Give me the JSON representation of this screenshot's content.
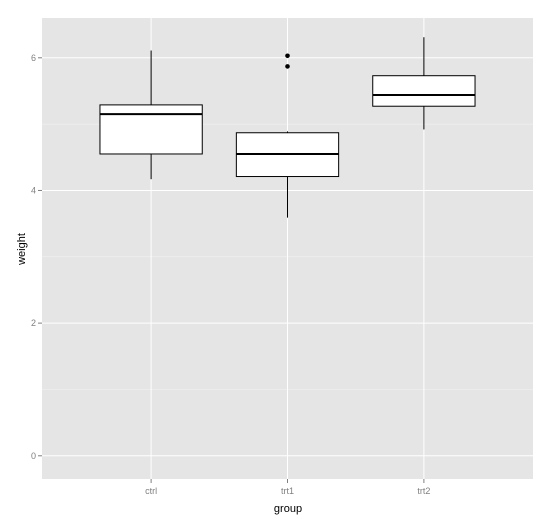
{
  "chart_data": {
    "type": "box",
    "title": "",
    "xlabel": "group",
    "ylabel": "weight",
    "ylim": [
      -0.35,
      6.6
    ],
    "y_ticks": [
      0,
      2,
      4,
      6
    ],
    "grid": true,
    "background_color": "#e5e5e5",
    "grid_color": "#ffffff",
    "box_fill": "#ffffff",
    "line_color": "#000000",
    "categories": [
      "ctrl",
      "trt1",
      "trt2"
    ],
    "boxes": [
      {
        "category": "ctrl",
        "whisker_low": 4.17,
        "q1": 4.55,
        "median": 5.15,
        "q3": 5.29,
        "whisker_high": 6.11,
        "outliers": []
      },
      {
        "category": "trt1",
        "whisker_low": 3.59,
        "q1": 4.21,
        "median": 4.55,
        "q3": 4.87,
        "whisker_high": 4.89,
        "outliers": [
          5.87,
          6.03
        ]
      },
      {
        "category": "trt2",
        "whisker_low": 4.92,
        "q1": 5.27,
        "median": 5.44,
        "q3": 5.73,
        "whisker_high": 6.31,
        "outliers": []
      }
    ]
  }
}
